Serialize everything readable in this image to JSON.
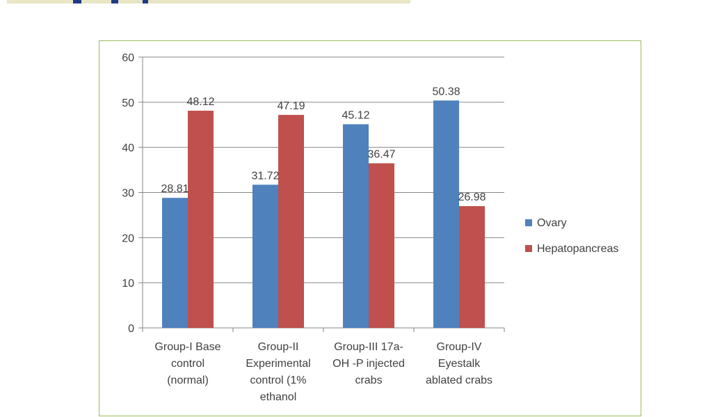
{
  "chart_data": {
    "type": "bar",
    "title": "",
    "xlabel": "",
    "ylabel": "",
    "ylim": [
      0,
      60
    ],
    "yticks": [
      "0",
      "10",
      "20",
      "30",
      "40",
      "50",
      "60"
    ],
    "grid": true,
    "legend_position": "right",
    "categories": [
      [
        "Group-I Base",
        "control",
        "(normal)"
      ],
      [
        "Group-II",
        "Experimental",
        "control (1%",
        "ethanol"
      ],
      [
        "Group-III 17a-",
        "OH -P injected",
        "crabs"
      ],
      [
        "Group-IV",
        "Eyestalk",
        "ablated crabs"
      ]
    ],
    "series": [
      {
        "name": "Ovary",
        "color": "#4f81bd",
        "values": [
          28.81,
          31.72,
          45.12,
          50.38
        ],
        "labels": [
          "28.81",
          "31.72",
          "45.12",
          "50.38"
        ]
      },
      {
        "name": "Hepatopancreas",
        "color": "#c0504d",
        "values": [
          48.12,
          47.19,
          36.47,
          26.98
        ],
        "labels": [
          "48.12",
          "47.19",
          "36.47",
          "26.98"
        ]
      }
    ]
  }
}
